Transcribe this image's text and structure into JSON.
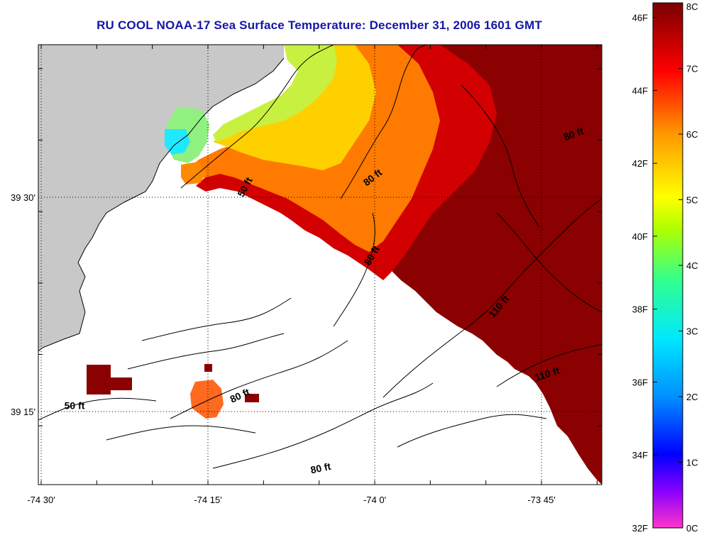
{
  "title": "RU COOL  NOAA-17  Sea Surface Temperature:  December 31, 2006 1601 GMT",
  "axes": {
    "x_ticks": [
      {
        "label": "-74 30'",
        "lon": -74.5
      },
      {
        "label": "-74 15'",
        "lon": -74.25
      },
      {
        "label": "-74 0'",
        "lon": -74.0
      },
      {
        "label": "-73 45'",
        "lon": -73.75
      }
    ],
    "y_ticks": [
      {
        "label": "39 30'",
        "lat": 39.5
      },
      {
        "label": "39 15'",
        "lat": 39.25
      }
    ]
  },
  "contour_labels": [
    {
      "text": "50 ft",
      "lon": -74.19,
      "lat": 39.51,
      "rotate": -62
    },
    {
      "text": "80 ft",
      "lon": -74.0,
      "lat": 39.52,
      "rotate": -38
    },
    {
      "text": "80 ft",
      "lon": -73.7,
      "lat": 39.57,
      "rotate": -20
    },
    {
      "text": "80 ft",
      "lon": -74.0,
      "lat": 39.43,
      "rotate": -60
    },
    {
      "text": "110 ft",
      "lon": -73.81,
      "lat": 39.37,
      "rotate": -50
    },
    {
      "text": "110 ft",
      "lon": -73.74,
      "lat": 39.29,
      "rotate": -18
    },
    {
      "text": "50 ft",
      "lon": -74.45,
      "lat": 39.253,
      "rotate": 0
    },
    {
      "text": "80 ft",
      "lon": -74.2,
      "lat": 39.265,
      "rotate": -25
    },
    {
      "text": "80 ft",
      "lon": -74.08,
      "lat": 39.18,
      "rotate": -12
    }
  ],
  "colorbar": {
    "fahrenheit_labels": [
      "46F",
      "44F",
      "42F",
      "40F",
      "38F",
      "36F",
      "34F",
      "32F"
    ],
    "celsius_labels": [
      "8C",
      "7C",
      "6C",
      "5C",
      "4C",
      "3C",
      "2C",
      "1C",
      "0C"
    ],
    "range_celsius": [
      0,
      8
    ],
    "colors": [
      "#ff33cc",
      "#6a00ff",
      "#0000ff",
      "#0090ff",
      "#00e8ff",
      "#30ff90",
      "#b0ff00",
      "#ffff00",
      "#ff9800",
      "#ff0000",
      "#7a0000"
    ]
  },
  "colors": {
    "land": "#c8c8c8",
    "title": "#1515a8",
    "contour": "#000000"
  }
}
